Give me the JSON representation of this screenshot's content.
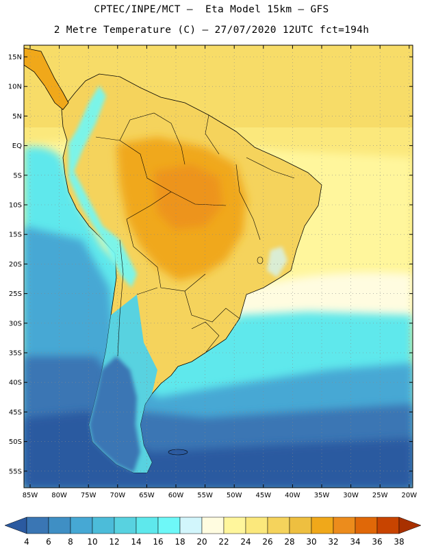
{
  "title": {
    "line1": "CPTEC/INPE/MCT –  Eta Model 15km – GFS",
    "line2": "2 Metre Temperature (C) – 27/07/2020 12UTC fct=194h"
  },
  "axes": {
    "lat_labels": [
      "15N",
      "10N",
      "5N",
      "EQ",
      "5S",
      "10S",
      "15S",
      "20S",
      "25S",
      "30S",
      "35S",
      "40S",
      "45S",
      "50S",
      "55S"
    ],
    "lon_labels": [
      "85W",
      "80W",
      "75W",
      "70W",
      "65W",
      "60W",
      "55W",
      "50W",
      "45W",
      "40W",
      "35W",
      "30W",
      "25W",
      "20W"
    ]
  },
  "colorbar": {
    "labels": [
      "4",
      "6",
      "8",
      "10",
      "12",
      "14",
      "16",
      "18",
      "20",
      "22",
      "24",
      "26",
      "28",
      "30",
      "32",
      "34",
      "36",
      "38"
    ],
    "colors": [
      "#2b5aa0",
      "#3a76b4",
      "#3f8fc4",
      "#46a8d4",
      "#4cbcd9",
      "#58d2e0",
      "#5ee8ec",
      "#6ef8f8",
      "#d2f6fc",
      "#fffce0",
      "#fff69c",
      "#fbe87c",
      "#f5d35c",
      "#eebf40",
      "#f0a81a",
      "#ec8c1c",
      "#e06808",
      "#c84400",
      "#a83000"
    ]
  },
  "colors": {
    "ocean_cold": "#2b5aa0",
    "ocean_cool": "#46a8d4",
    "ocean_mild": "#5ee8ec",
    "warm_ocean": "#fbe87c",
    "land_hot": "#f0a81a",
    "land_warm": "#f5d35c",
    "andes_cold": "#6ef8f8",
    "border": "#000000",
    "grid": "#888888"
  }
}
